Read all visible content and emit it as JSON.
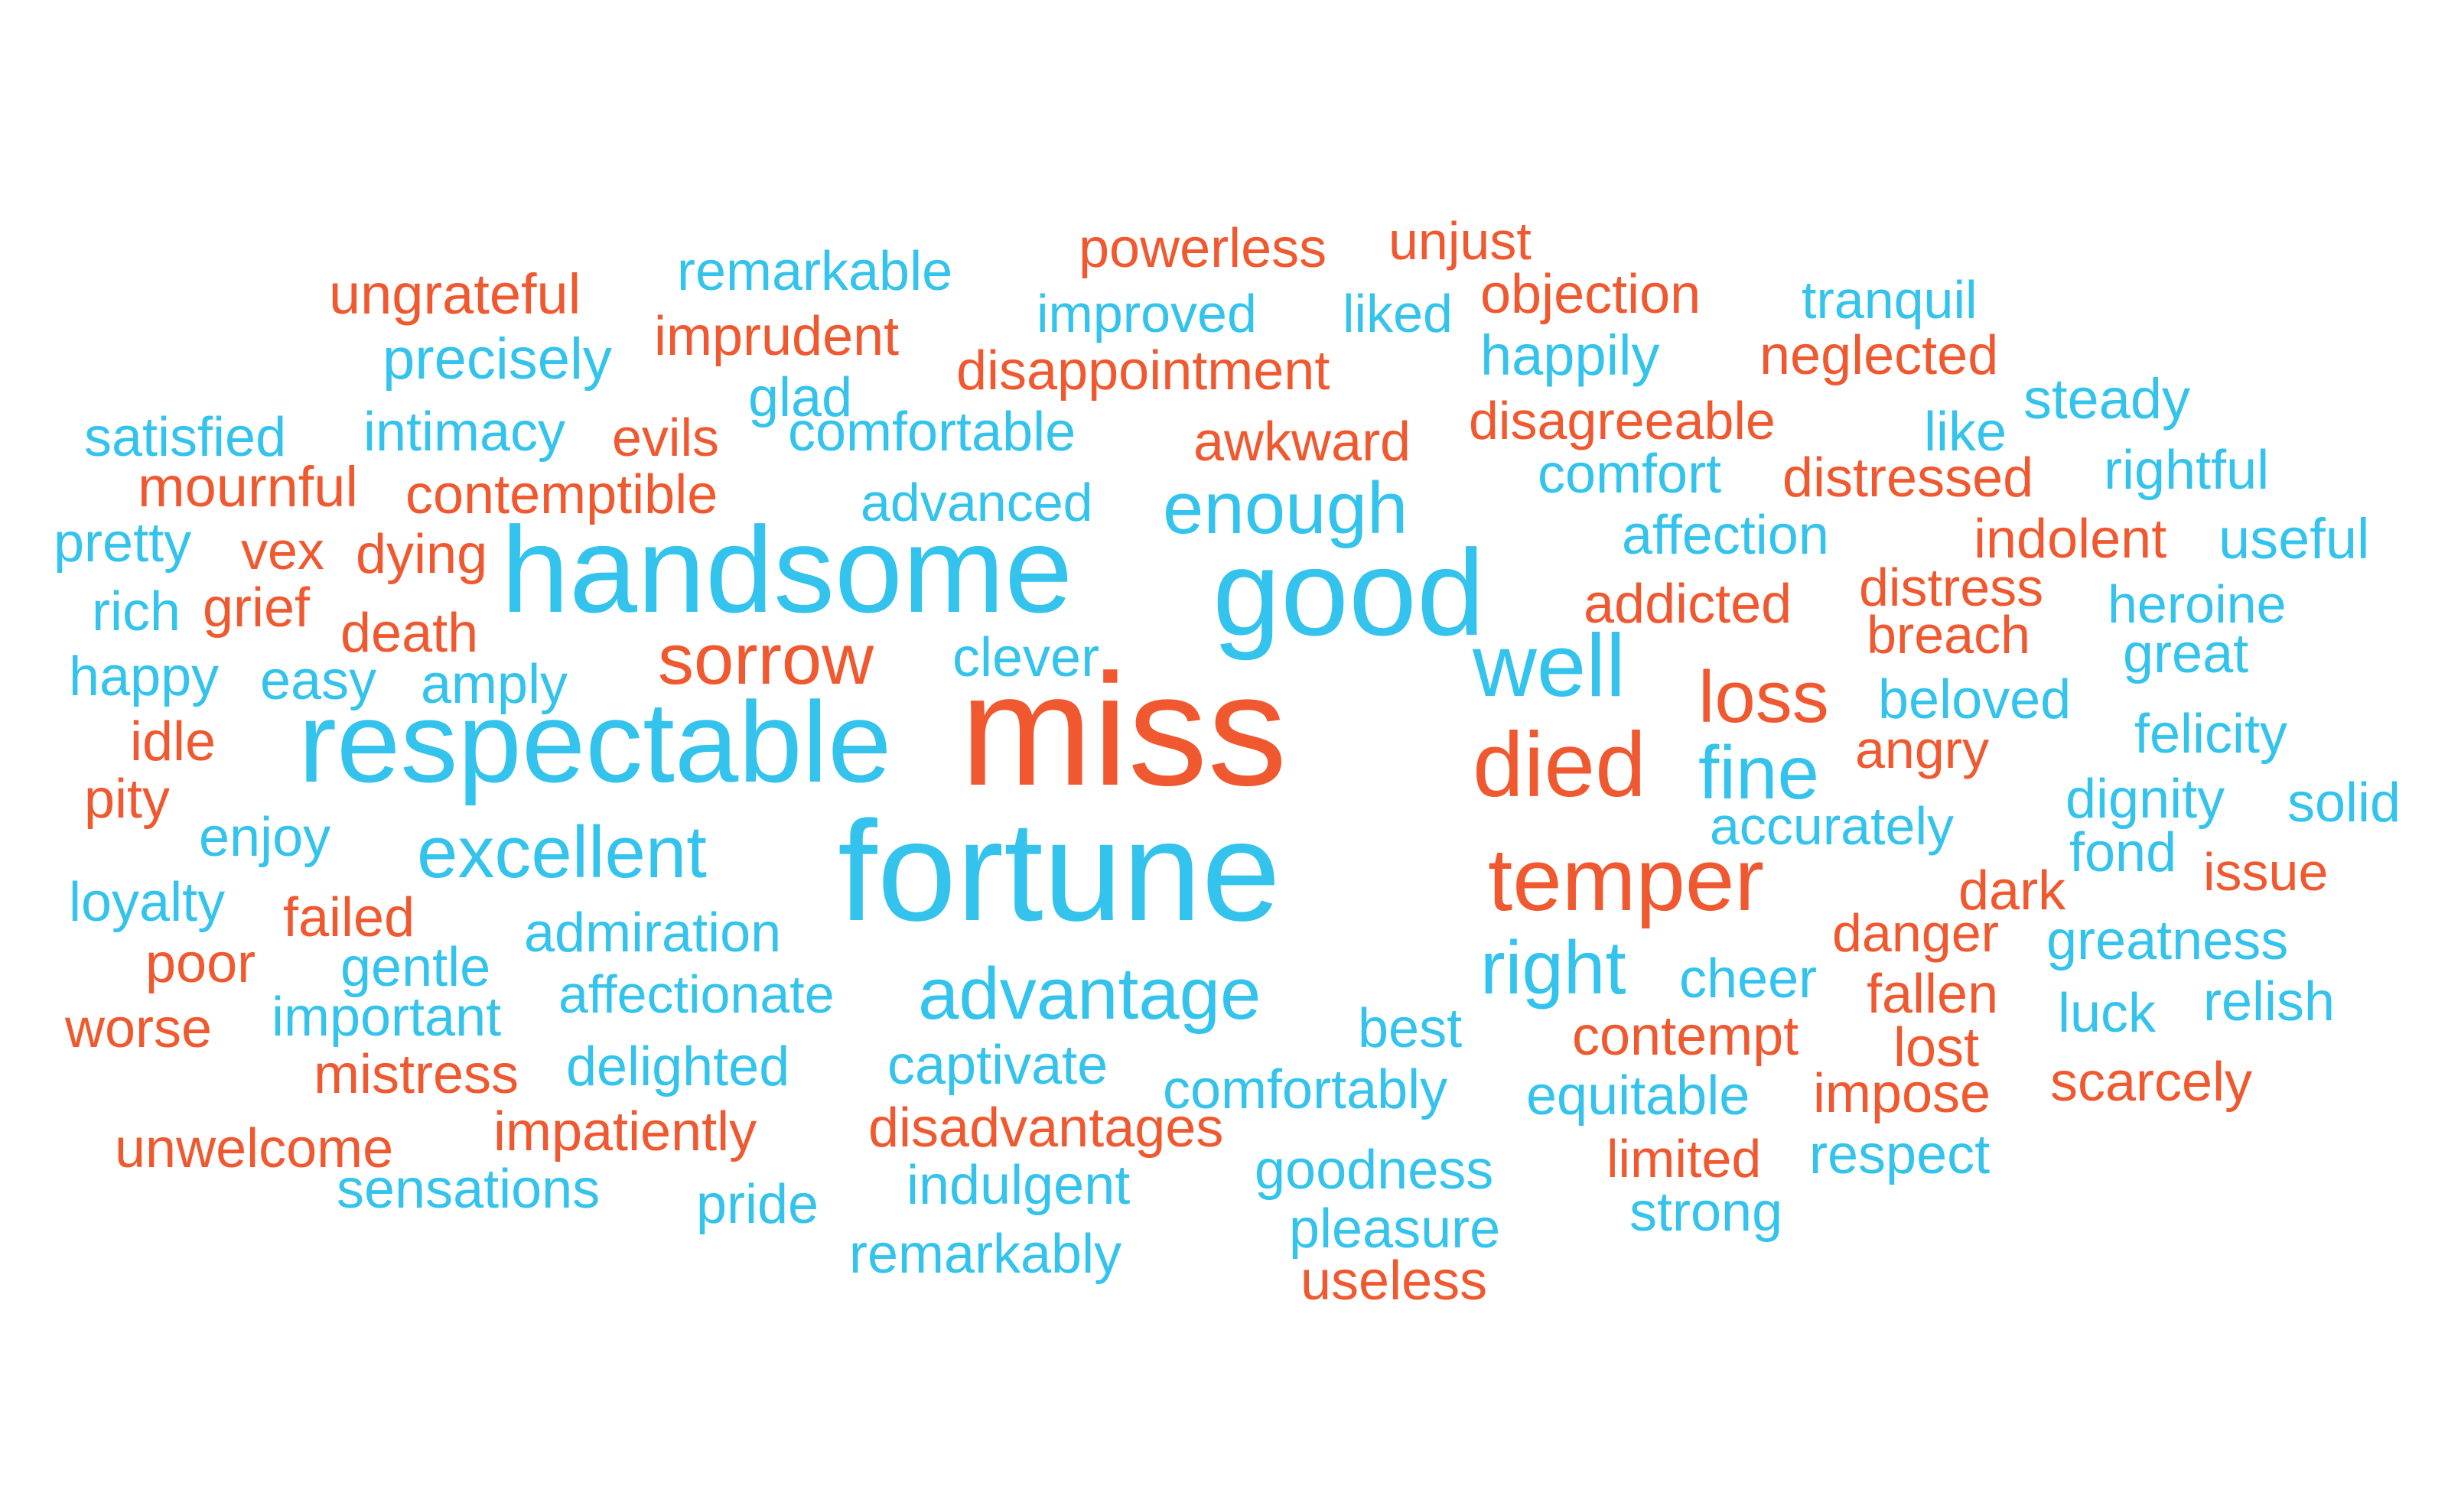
{
  "colors": {
    "positive": "#33c3ec",
    "negative": "#f0592f",
    "background": "#ffffff"
  },
  "words": [
    {
      "text": "miss",
      "sentiment": "negative"
    },
    {
      "text": "fortune",
      "sentiment": "positive"
    },
    {
      "text": "handsome",
      "sentiment": "positive"
    },
    {
      "text": "good",
      "sentiment": "positive"
    },
    {
      "text": "respectable",
      "sentiment": "positive"
    },
    {
      "text": "temper",
      "sentiment": "negative"
    },
    {
      "text": "died",
      "sentiment": "negative"
    },
    {
      "text": "well",
      "sentiment": "positive"
    },
    {
      "text": "advantage",
      "sentiment": "positive"
    },
    {
      "text": "excellent",
      "sentiment": "positive"
    },
    {
      "text": "right",
      "sentiment": "positive"
    },
    {
      "text": "enough",
      "sentiment": "positive"
    },
    {
      "text": "sorrow",
      "sentiment": "negative"
    },
    {
      "text": "loss",
      "sentiment": "negative"
    },
    {
      "text": "fine",
      "sentiment": "positive"
    },
    {
      "text": "remarkable",
      "sentiment": "positive"
    },
    {
      "text": "powerless",
      "sentiment": "negative"
    },
    {
      "text": "unjust",
      "sentiment": "negative"
    },
    {
      "text": "ungrateful",
      "sentiment": "negative"
    },
    {
      "text": "improved",
      "sentiment": "positive"
    },
    {
      "text": "liked",
      "sentiment": "positive"
    },
    {
      "text": "objection",
      "sentiment": "negative"
    },
    {
      "text": "tranquil",
      "sentiment": "positive"
    },
    {
      "text": "precisely",
      "sentiment": "positive"
    },
    {
      "text": "imprudent",
      "sentiment": "negative"
    },
    {
      "text": "happily",
      "sentiment": "positive"
    },
    {
      "text": "neglected",
      "sentiment": "negative"
    },
    {
      "text": "glad",
      "sentiment": "positive"
    },
    {
      "text": "disappointment",
      "sentiment": "negative"
    },
    {
      "text": "steady",
      "sentiment": "positive"
    },
    {
      "text": "satisfied",
      "sentiment": "positive"
    },
    {
      "text": "intimacy",
      "sentiment": "positive"
    },
    {
      "text": "evils",
      "sentiment": "negative"
    },
    {
      "text": "comfortable",
      "sentiment": "positive"
    },
    {
      "text": "awkward",
      "sentiment": "negative"
    },
    {
      "text": "disagreeable",
      "sentiment": "negative"
    },
    {
      "text": "like",
      "sentiment": "positive"
    },
    {
      "text": "rightful",
      "sentiment": "positive"
    },
    {
      "text": "mournful",
      "sentiment": "negative"
    },
    {
      "text": "contemptible",
      "sentiment": "negative"
    },
    {
      "text": "advanced",
      "sentiment": "positive"
    },
    {
      "text": "comfort",
      "sentiment": "positive"
    },
    {
      "text": "distressed",
      "sentiment": "negative"
    },
    {
      "text": "pretty",
      "sentiment": "positive"
    },
    {
      "text": "vex",
      "sentiment": "negative"
    },
    {
      "text": "dying",
      "sentiment": "negative"
    },
    {
      "text": "affection",
      "sentiment": "positive"
    },
    {
      "text": "indolent",
      "sentiment": "negative"
    },
    {
      "text": "useful",
      "sentiment": "positive"
    },
    {
      "text": "rich",
      "sentiment": "positive"
    },
    {
      "text": "grief",
      "sentiment": "negative"
    },
    {
      "text": "distress",
      "sentiment": "negative"
    },
    {
      "text": "addicted",
      "sentiment": "negative"
    },
    {
      "text": "heroine",
      "sentiment": "positive"
    },
    {
      "text": "death",
      "sentiment": "negative"
    },
    {
      "text": "breach",
      "sentiment": "negative"
    },
    {
      "text": "clever",
      "sentiment": "positive"
    },
    {
      "text": "great",
      "sentiment": "positive"
    },
    {
      "text": "happy",
      "sentiment": "positive"
    },
    {
      "text": "easy",
      "sentiment": "positive"
    },
    {
      "text": "amply",
      "sentiment": "positive"
    },
    {
      "text": "beloved",
      "sentiment": "positive"
    },
    {
      "text": "idle",
      "sentiment": "negative"
    },
    {
      "text": "angry",
      "sentiment": "negative"
    },
    {
      "text": "felicity",
      "sentiment": "positive"
    },
    {
      "text": "pity",
      "sentiment": "negative"
    },
    {
      "text": "dignity",
      "sentiment": "positive"
    },
    {
      "text": "solid",
      "sentiment": "positive"
    },
    {
      "text": "enjoy",
      "sentiment": "positive"
    },
    {
      "text": "accurately",
      "sentiment": "positive"
    },
    {
      "text": "fond",
      "sentiment": "positive"
    },
    {
      "text": "dark",
      "sentiment": "negative"
    },
    {
      "text": "issue",
      "sentiment": "negative"
    },
    {
      "text": "loyalty",
      "sentiment": "positive"
    },
    {
      "text": "failed",
      "sentiment": "negative"
    },
    {
      "text": "admiration",
      "sentiment": "positive"
    },
    {
      "text": "danger",
      "sentiment": "negative"
    },
    {
      "text": "greatness",
      "sentiment": "positive"
    },
    {
      "text": "poor",
      "sentiment": "negative"
    },
    {
      "text": "gentle",
      "sentiment": "positive"
    },
    {
      "text": "cheer",
      "sentiment": "positive"
    },
    {
      "text": "fallen",
      "sentiment": "negative"
    },
    {
      "text": "affectionate",
      "sentiment": "positive"
    },
    {
      "text": "relish",
      "sentiment": "positive"
    },
    {
      "text": "important",
      "sentiment": "positive"
    },
    {
      "text": "luck",
      "sentiment": "positive"
    },
    {
      "text": "worse",
      "sentiment": "negative"
    },
    {
      "text": "best",
      "sentiment": "positive"
    },
    {
      "text": "contempt",
      "sentiment": "negative"
    },
    {
      "text": "lost",
      "sentiment": "negative"
    },
    {
      "text": "mistress",
      "sentiment": "negative"
    },
    {
      "text": "delighted",
      "sentiment": "positive"
    },
    {
      "text": "captivate",
      "sentiment": "positive"
    },
    {
      "text": "comfortably",
      "sentiment": "positive"
    },
    {
      "text": "equitable",
      "sentiment": "positive"
    },
    {
      "text": "impose",
      "sentiment": "negative"
    },
    {
      "text": "scarcely",
      "sentiment": "negative"
    },
    {
      "text": "impatiently",
      "sentiment": "negative"
    },
    {
      "text": "disadvantages",
      "sentiment": "negative"
    },
    {
      "text": "unwelcome",
      "sentiment": "negative"
    },
    {
      "text": "limited",
      "sentiment": "negative"
    },
    {
      "text": "respect",
      "sentiment": "positive"
    },
    {
      "text": "goodness",
      "sentiment": "positive"
    },
    {
      "text": "sensations",
      "sentiment": "positive"
    },
    {
      "text": "indulgent",
      "sentiment": "positive"
    },
    {
      "text": "pride",
      "sentiment": "positive"
    },
    {
      "text": "strong",
      "sentiment": "positive"
    },
    {
      "text": "pleasure",
      "sentiment": "positive"
    },
    {
      "text": "remarkably",
      "sentiment": "positive"
    },
    {
      "text": "useless",
      "sentiment": "negative"
    }
  ]
}
